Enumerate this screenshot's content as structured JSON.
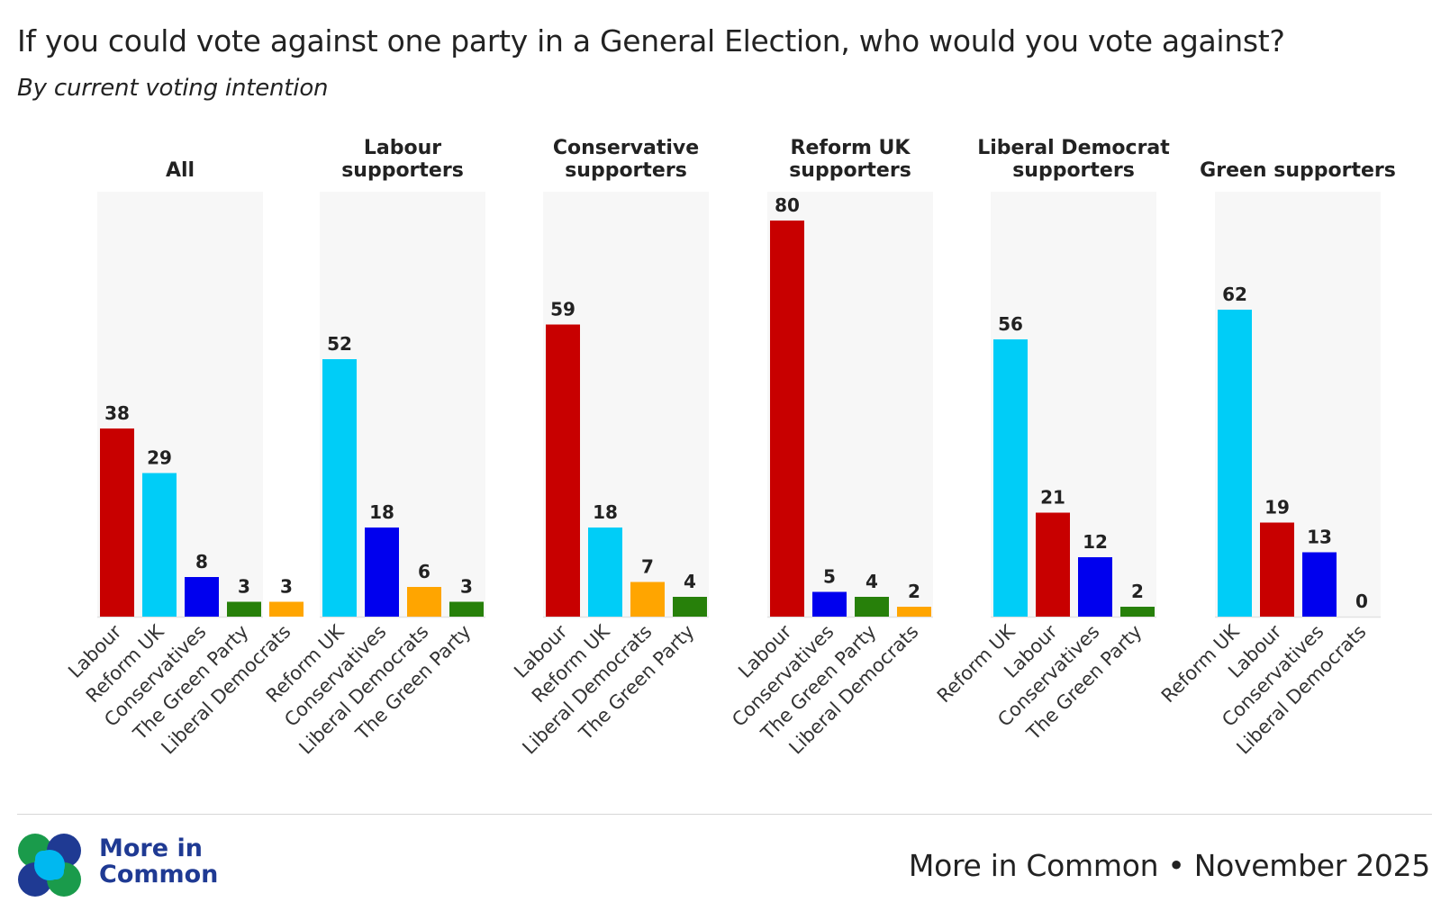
{
  "title": "If you could vote against one party in a General Election, who would you vote against?",
  "subtitle": "By current voting intention",
  "colors": {
    "Labour": "#c80000",
    "Reform UK": "#00cdf7",
    "Conservatives": "#0000ee",
    "The Green Party": "#27800a",
    "Liberal Democrats": "#ffa500",
    "panel_background": "#f7f7f7"
  },
  "chart_data": {
    "type": "bar",
    "ylim": [
      0,
      80
    ],
    "grid": false,
    "panels": [
      {
        "title": [
          "All"
        ],
        "categories": [
          "Labour",
          "Reform UK",
          "Conservatives",
          "The Green Party",
          "Liberal Democrats"
        ],
        "values": [
          38,
          29,
          8,
          3,
          3
        ]
      },
      {
        "title": [
          "Labour",
          "supporters"
        ],
        "categories": [
          "Reform UK",
          "Conservatives",
          "Liberal Democrats",
          "The Green Party"
        ],
        "values": [
          52,
          18,
          6,
          3
        ]
      },
      {
        "title": [
          "Conservative",
          "supporters"
        ],
        "categories": [
          "Labour",
          "Reform UK",
          "Liberal Democrats",
          "The Green Party"
        ],
        "values": [
          59,
          18,
          7,
          4
        ]
      },
      {
        "title": [
          "Reform UK",
          "supporters"
        ],
        "categories": [
          "Labour",
          "Conservatives",
          "The Green Party",
          "Liberal Democrats"
        ],
        "values": [
          80,
          5,
          4,
          2
        ]
      },
      {
        "title": [
          "Liberal Democrat",
          "supporters"
        ],
        "categories": [
          "Reform UK",
          "Labour",
          "Conservatives",
          "The Green Party"
        ],
        "values": [
          56,
          21,
          12,
          2
        ]
      },
      {
        "title": [
          "Green supporters"
        ],
        "categories": [
          "Reform UK",
          "Labour",
          "Conservatives",
          "Liberal Democrats"
        ],
        "values": [
          62,
          19,
          13,
          0
        ]
      }
    ]
  },
  "footer": {
    "brand": "More in Common",
    "credit": "More in Common • November 2025"
  }
}
